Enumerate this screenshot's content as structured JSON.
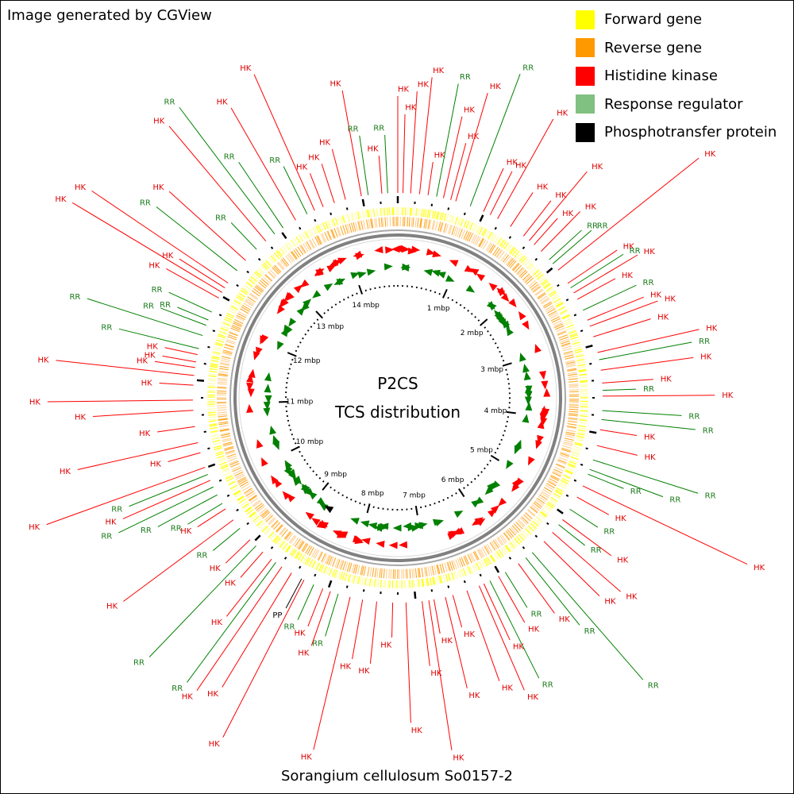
{
  "credit": "Image generated by CGView",
  "legend": [
    {
      "label": "Forward gene",
      "color": "#ffff00"
    },
    {
      "label": "Reverse gene",
      "color": "#ff9900"
    },
    {
      "label": "Histidine kinase",
      "color": "#ff0000"
    },
    {
      "label": "Response regulator",
      "color": "#80c080"
    },
    {
      "label": "Phosphotransfer protein",
      "color": "#000000"
    }
  ],
  "center": {
    "title": "P2CS",
    "subtitle": "TCS distribution"
  },
  "organism": "Sorangium cellulosum So0157-2",
  "genome": {
    "unit": "mbp",
    "tick_labels": [
      "1 mbp",
      "2 mbp",
      "3 mbp",
      "4 mbp",
      "5 mbp",
      "6 mbp",
      "7 mbp",
      "8 mbp",
      "9 mbp",
      "10 mbp",
      "11 mbp",
      "12 mbp",
      "13 mbp",
      "14 mbp"
    ]
  },
  "feature_labels": {
    "hk": "HK",
    "rr": "RR",
    "pp": "PP"
  },
  "colors": {
    "hk": "#ff0000",
    "rr": "#008000",
    "rr_label": "#1a7a1a",
    "hk_label": "#e00000",
    "forward": "#ffff00",
    "reverse": "#ff9900",
    "backbone": "#808080"
  }
}
